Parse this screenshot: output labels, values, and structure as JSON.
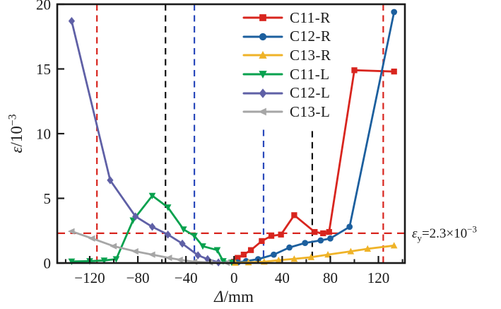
{
  "chart_data": {
    "type": "line",
    "title": "",
    "xlabel": "Δ/mm",
    "ylabel": "ε/10⁻³",
    "xlim": [
      -147,
      142
    ],
    "ylim": [
      0,
      20
    ],
    "x_ticks_major": [
      -120,
      -80,
      -40,
      0,
      40,
      80,
      120
    ],
    "x_ticks_minor": [
      -140,
      -100,
      -60,
      -20,
      20,
      60,
      100,
      140
    ],
    "y_ticks": [
      0,
      5,
      10,
      15,
      20
    ],
    "grid": false,
    "legend_position": "inside-top-center",
    "series": [
      {
        "name": "C11-R",
        "color": "#d8251e",
        "marker": "square",
        "points": [
          [
            0,
            0.1
          ],
          [
            3,
            0.4
          ],
          [
            8,
            0.65
          ],
          [
            14,
            1.0
          ],
          [
            23,
            1.7
          ],
          [
            31,
            2.1
          ],
          [
            39,
            2.2
          ],
          [
            50,
            3.7
          ],
          [
            67,
            2.4
          ],
          [
            74,
            2.3
          ],
          [
            79,
            2.4
          ],
          [
            100,
            14.9
          ],
          [
            133,
            14.8
          ]
        ]
      },
      {
        "name": "C12-R",
        "color": "#1c5f9e",
        "marker": "circle",
        "points": [
          [
            3,
            0.05
          ],
          [
            10,
            0.15
          ],
          [
            20,
            0.3
          ],
          [
            33,
            0.65
          ],
          [
            46,
            1.2
          ],
          [
            59,
            1.55
          ],
          [
            72,
            1.75
          ],
          [
            80,
            1.9
          ],
          [
            96,
            2.8
          ],
          [
            133,
            19.4
          ]
        ]
      },
      {
        "name": "C13-R",
        "color": "#efb328",
        "marker": "triangle-up",
        "points": [
          [
            1,
            0.02
          ],
          [
            12,
            0.05
          ],
          [
            25,
            0.1
          ],
          [
            37,
            0.22
          ],
          [
            50,
            0.32
          ],
          [
            64,
            0.45
          ],
          [
            78,
            0.65
          ],
          [
            97,
            0.9
          ],
          [
            111,
            1.1
          ],
          [
            133,
            1.35
          ]
        ]
      },
      {
        "name": "C11-L",
        "color": "#07a14e",
        "marker": "triangle-down",
        "points": [
          [
            -135,
            0.12
          ],
          [
            -120,
            0.15
          ],
          [
            -108,
            0.2
          ],
          [
            -98,
            0.3
          ],
          [
            -84,
            3.3
          ],
          [
            -68,
            5.2
          ],
          [
            -55,
            4.3
          ],
          [
            -42,
            2.6
          ],
          [
            -33,
            2.1
          ],
          [
            -26,
            1.3
          ],
          [
            -14,
            1.0
          ],
          [
            -9,
            0.15
          ],
          [
            -2,
            0.05
          ]
        ]
      },
      {
        "name": "C12-L",
        "color": "#5f60a6",
        "marker": "diamond",
        "points": [
          [
            -135,
            18.7
          ],
          [
            -103,
            6.4
          ],
          [
            -82,
            3.6
          ],
          [
            -68,
            2.8
          ],
          [
            -55,
            2.2
          ],
          [
            -43,
            1.5
          ],
          [
            -30,
            0.6
          ],
          [
            -22,
            0.3
          ],
          [
            -13,
            0.05
          ]
        ]
      },
      {
        "name": "C13-L",
        "color": "#a6a6a6",
        "marker": "triangle-left",
        "points": [
          [
            -135,
            2.45
          ],
          [
            -118,
            1.9
          ],
          [
            -100,
            1.3
          ],
          [
            -82,
            0.9
          ],
          [
            -68,
            0.65
          ],
          [
            -54,
            0.4
          ],
          [
            -45,
            0.25
          ],
          [
            -33,
            0.1
          ],
          [
            -20,
            0.05
          ],
          [
            -6,
            0.02
          ]
        ]
      }
    ],
    "reference_lines": {
      "horizontal": [
        {
          "name": "yield-strain-line",
          "y": 2.3,
          "color": "#d8251e",
          "style": "dashed",
          "label": "εy=2.3×10⁻³"
        }
      ],
      "vertical": [
        {
          "name": "vline-red-left",
          "x": -114,
          "color": "#d8251e",
          "style": "dashed",
          "y_extent": [
            0,
            20
          ]
        },
        {
          "name": "vline-black-left",
          "x": -57,
          "color": "#111111",
          "style": "dashed",
          "y_extent": [
            0,
            20
          ]
        },
        {
          "name": "vline-blue-left",
          "x": -33,
          "color": "#2a49bb",
          "style": "dashed",
          "y_extent": [
            0,
            20
          ]
        },
        {
          "name": "vline-blue-right",
          "x": 24.5,
          "color": "#2a49bb",
          "style": "dashed",
          "y_extent": [
            0,
            10.3
          ]
        },
        {
          "name": "vline-black-right",
          "x": 65,
          "color": "#111111",
          "style": "dashed",
          "y_extent": [
            0,
            10.2
          ]
        },
        {
          "name": "vline-red-right",
          "x": 124,
          "color": "#d8251e",
          "style": "dashed",
          "y_extent": [
            0,
            20
          ]
        }
      ]
    }
  },
  "labels": {
    "xlabel": {
      "sym": "Δ",
      "rest": "/mm"
    },
    "ylabel": {
      "eps": "ε",
      "base": "/10",
      "exp": "−3"
    },
    "annotation": {
      "eps": "ε",
      "sub": "y",
      "mid": "=2.3×10",
      "exp": "−3"
    }
  },
  "style": {
    "axis_color": "#1a1a1a",
    "background": "#ffffff"
  }
}
